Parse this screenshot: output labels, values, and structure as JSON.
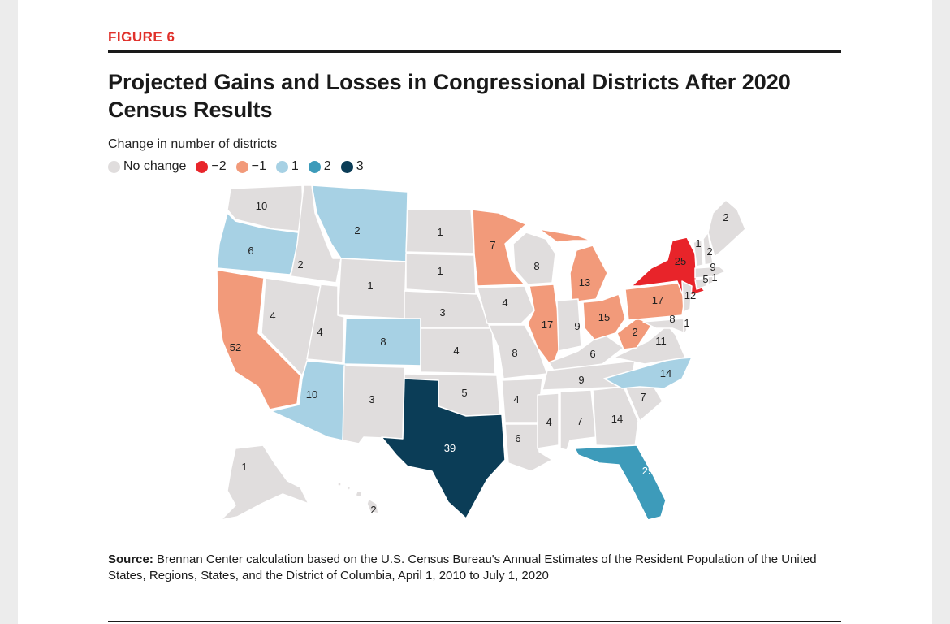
{
  "figure_label": "FIGURE 6",
  "title": "Projected Gains and Losses in Congressional Districts After 2020 Census Results",
  "legend": {
    "title": "Change in number of districts",
    "items": [
      {
        "label": "No change",
        "color": "#e0dddd"
      },
      {
        "label": "−2",
        "color": "#e8242a"
      },
      {
        "label": "−1",
        "color": "#f29a7a"
      },
      {
        "label": "1",
        "color": "#a7d1e4"
      },
      {
        "label": "2",
        "color": "#3d9bba"
      },
      {
        "label": "3",
        "color": "#0b3d57"
      }
    ]
  },
  "states": [
    {
      "abbr": "WA",
      "districts": 10,
      "change": 0
    },
    {
      "abbr": "OR",
      "districts": 6,
      "change": 1
    },
    {
      "abbr": "CA",
      "districts": 52,
      "change": -1
    },
    {
      "abbr": "ID",
      "districts": 2,
      "change": 0
    },
    {
      "abbr": "NV",
      "districts": 4,
      "change": 0
    },
    {
      "abbr": "MT",
      "districts": 2,
      "change": 1
    },
    {
      "abbr": "WY",
      "districts": 1,
      "change": 0
    },
    {
      "abbr": "UT",
      "districts": 4,
      "change": 0
    },
    {
      "abbr": "AZ",
      "districts": 10,
      "change": 1
    },
    {
      "abbr": "CO",
      "districts": 8,
      "change": 1
    },
    {
      "abbr": "NM",
      "districts": 3,
      "change": 0
    },
    {
      "abbr": "ND",
      "districts": 1,
      "change": 0
    },
    {
      "abbr": "SD",
      "districts": 1,
      "change": 0
    },
    {
      "abbr": "NE",
      "districts": 3,
      "change": 0
    },
    {
      "abbr": "KS",
      "districts": 4,
      "change": 0
    },
    {
      "abbr": "OK",
      "districts": 5,
      "change": 0
    },
    {
      "abbr": "TX",
      "districts": 39,
      "change": 3
    },
    {
      "abbr": "MN",
      "districts": 7,
      "change": -1
    },
    {
      "abbr": "IA",
      "districts": 4,
      "change": 0
    },
    {
      "abbr": "MO",
      "districts": 8,
      "change": 0
    },
    {
      "abbr": "AR",
      "districts": 4,
      "change": 0
    },
    {
      "abbr": "LA",
      "districts": 6,
      "change": 0
    },
    {
      "abbr": "WI",
      "districts": 8,
      "change": 0
    },
    {
      "abbr": "IL",
      "districts": 17,
      "change": -1
    },
    {
      "abbr": "MI",
      "districts": 13,
      "change": -1
    },
    {
      "abbr": "IN",
      "districts": 9,
      "change": 0
    },
    {
      "abbr": "KY",
      "districts": 6,
      "change": 0
    },
    {
      "abbr": "TN",
      "districts": 9,
      "change": 0
    },
    {
      "abbr": "MS",
      "districts": 4,
      "change": 0
    },
    {
      "abbr": "AL",
      "districts": 7,
      "change": 0
    },
    {
      "abbr": "GA",
      "districts": 14,
      "change": 0
    },
    {
      "abbr": "FL",
      "districts": 29,
      "change": 2
    },
    {
      "abbr": "SC",
      "districts": 7,
      "change": 0
    },
    {
      "abbr": "NC",
      "districts": 14,
      "change": 1
    },
    {
      "abbr": "VA",
      "districts": 11,
      "change": 0
    },
    {
      "abbr": "WV",
      "districts": 2,
      "change": -1
    },
    {
      "abbr": "OH",
      "districts": 15,
      "change": -1
    },
    {
      "abbr": "PA",
      "districts": 17,
      "change": -1
    },
    {
      "abbr": "NY",
      "districts": 25,
      "change": -2
    },
    {
      "abbr": "MD",
      "districts": 8,
      "change": 0
    },
    {
      "abbr": "DE",
      "districts": 1,
      "change": 0
    },
    {
      "abbr": "NJ",
      "districts": 12,
      "change": 0
    },
    {
      "abbr": "CT",
      "districts": 5,
      "change": 0
    },
    {
      "abbr": "RI",
      "districts": 1,
      "change": 0
    },
    {
      "abbr": "MA",
      "districts": 9,
      "change": 0
    },
    {
      "abbr": "VT",
      "districts": 1,
      "change": 0
    },
    {
      "abbr": "NH",
      "districts": 2,
      "change": 0
    },
    {
      "abbr": "ME",
      "districts": 2,
      "change": 0
    },
    {
      "abbr": "AK",
      "districts": 1,
      "change": 0
    },
    {
      "abbr": "HI",
      "districts": 2,
      "change": 0
    }
  ],
  "source": {
    "label": "Source:",
    "text": "Brennan Center calculation based on the U.S. Census Bureau's Annual Estimates of the Resident Population of the United States, Regions, States, and the District of Columbia, April 1, 2010 to July 1, 2020"
  }
}
